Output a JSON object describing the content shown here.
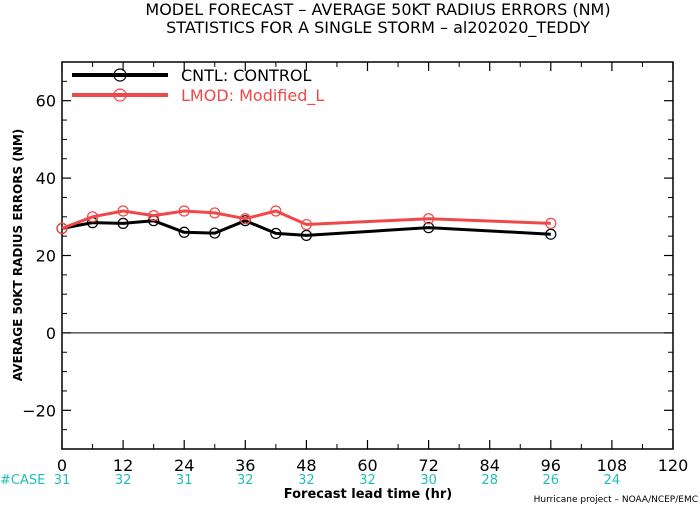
{
  "chart_data": {
    "type": "line",
    "title_line1": "MODEL FORECAST – AVERAGE 50KT RADIUS ERRORS (NM)",
    "title_line2": "STATISTICS FOR A SINGLE STORM – al202020_TEDDY",
    "xlabel": "Forecast lead time (hr)",
    "ylabel": "AVERAGE 50KT RADIUS ERRORS (NM)",
    "xlim": [
      0,
      120
    ],
    "ylim": [
      -30,
      70
    ],
    "xticks": [
      0,
      12,
      24,
      36,
      48,
      60,
      72,
      84,
      96,
      108,
      120
    ],
    "yticks": [
      -20,
      0,
      20,
      40,
      60
    ],
    "zero_line": true,
    "legend_position": "top-left",
    "series": [
      {
        "name": "CNTL: CONTROL",
        "color": "#000000",
        "x": [
          0,
          6,
          12,
          18,
          24,
          30,
          36,
          42,
          48,
          72,
          96
        ],
        "y": [
          27.0,
          28.5,
          28.3,
          29.0,
          26.0,
          25.8,
          29.0,
          25.7,
          25.2,
          27.2,
          25.5
        ]
      },
      {
        "name": "LMOD: Modified_L",
        "color": "#f04848",
        "x": [
          0,
          6,
          12,
          18,
          24,
          30,
          36,
          42,
          48,
          72,
          96
        ],
        "y": [
          27.0,
          30.0,
          31.5,
          30.3,
          31.5,
          31.0,
          29.5,
          31.5,
          28.0,
          29.5,
          28.3
        ]
      }
    ],
    "case_label": "#CASE",
    "case_counts": [
      {
        "x": 0,
        "label": "31"
      },
      {
        "x": 12,
        "label": "32"
      },
      {
        "x": 24,
        "label": "31"
      },
      {
        "x": 36,
        "label": "32"
      },
      {
        "x": 48,
        "label": "32"
      },
      {
        "x": 60,
        "label": "32"
      },
      {
        "x": 72,
        "label": "30"
      },
      {
        "x": 84,
        "label": "28"
      },
      {
        "x": 96,
        "label": "26"
      },
      {
        "x": 108,
        "label": "24"
      }
    ],
    "credit": "Hurricane project – NOAA/NCEP/EMC"
  }
}
